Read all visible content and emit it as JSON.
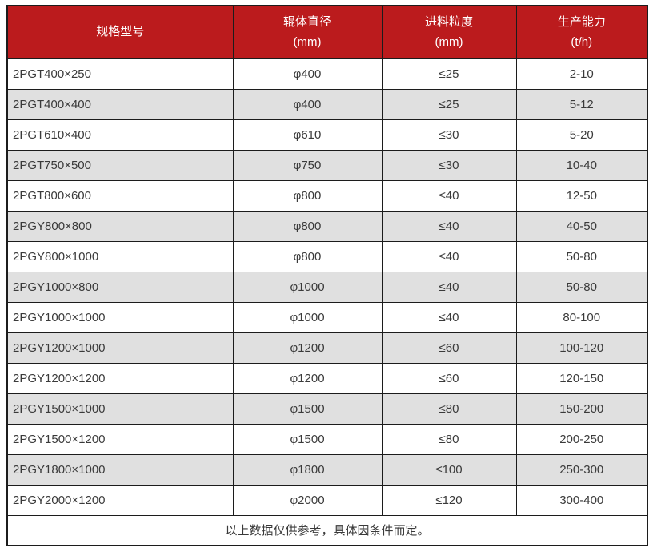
{
  "colors": {
    "header_bg": "#bb1b1d",
    "header_text": "#ffffff",
    "row_bg": "#ffffff",
    "row_alt_bg": "#e0e0e0",
    "body_text": "#3a3a3a",
    "grid_border": "#1c1c1c",
    "page_bg": "#ffffff"
  },
  "chart_data": {
    "type": "table",
    "title": "",
    "layout_hints": {
      "header_style": "red background, white text, units on second line",
      "striping": "alternating white / light-gray rows starting with white",
      "grid": "dark 1px grid lines, 2px outer border",
      "alignment": "first column left-aligned, other columns centered"
    },
    "columns": [
      {
        "title": "规格型号",
        "unit": ""
      },
      {
        "title": "辊体直径",
        "unit": "(mm)"
      },
      {
        "title": "进料粒度",
        "unit": "(mm)"
      },
      {
        "title": "生产能力",
        "unit": "(t/h)"
      }
    ],
    "rows": [
      {
        "model": "2PGT400×250",
        "roller_diameter": "φ400",
        "feed_size": "≤25",
        "capacity": "2-10"
      },
      {
        "model": "2PGT400×400",
        "roller_diameter": "φ400",
        "feed_size": "≤25",
        "capacity": "5-12"
      },
      {
        "model": "2PGT610×400",
        "roller_diameter": "φ610",
        "feed_size": "≤30",
        "capacity": "5-20"
      },
      {
        "model": "2PGT750×500",
        "roller_diameter": "φ750",
        "feed_size": "≤30",
        "capacity": "10-40"
      },
      {
        "model": "2PGT800×600",
        "roller_diameter": "φ800",
        "feed_size": "≤40",
        "capacity": "12-50"
      },
      {
        "model": "2PGY800×800",
        "roller_diameter": "φ800",
        "feed_size": "≤40",
        "capacity": "40-50"
      },
      {
        "model": "2PGY800×1000",
        "roller_diameter": "φ800",
        "feed_size": "≤40",
        "capacity": "50-80"
      },
      {
        "model": "2PGY1000×800",
        "roller_diameter": "φ1000",
        "feed_size": "≤40",
        "capacity": "50-80"
      },
      {
        "model": "2PGY1000×1000",
        "roller_diameter": "φ1000",
        "feed_size": "≤40",
        "capacity": "80-100"
      },
      {
        "model": "2PGY1200×1000",
        "roller_diameter": "φ1200",
        "feed_size": "≤60",
        "capacity": "100-120"
      },
      {
        "model": "2PGY1200×1200",
        "roller_diameter": "φ1200",
        "feed_size": "≤60",
        "capacity": "120-150"
      },
      {
        "model": "2PGY1500×1000",
        "roller_diameter": "φ1500",
        "feed_size": "≤80",
        "capacity": "150-200"
      },
      {
        "model": "2PGY1500×1200",
        "roller_diameter": "φ1500",
        "feed_size": "≤80",
        "capacity": "200-250"
      },
      {
        "model": "2PGY1800×1000",
        "roller_diameter": "φ1800",
        "feed_size": "≤100",
        "capacity": "250-300"
      },
      {
        "model": "2PGY2000×1200",
        "roller_diameter": "φ2000",
        "feed_size": "≤120",
        "capacity": "300-400"
      }
    ],
    "footnote": "以上数据仅供参考，具体因条件而定。"
  }
}
